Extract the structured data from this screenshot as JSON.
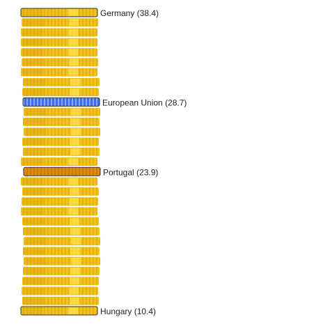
{
  "chart_data": {
    "type": "bar",
    "style": "stacked-coins",
    "coin_count": 31,
    "highlighted": [
      {
        "label": "Germany (38.4)",
        "kind": "outlined",
        "coin_index": 0
      },
      {
        "label": "European Union (28.7)",
        "kind": "blue",
        "coin_index": 9
      },
      {
        "label": "Portugal (23.9)",
        "kind": "orange",
        "coin_index": 16
      },
      {
        "label": "Hungary (10.4)",
        "kind": "outlined",
        "coin_index": 30
      }
    ]
  },
  "colors": {
    "coin_gold": "#F0C21A",
    "coin_gold_dark": "#D9A30E",
    "coin_highlight": "#FFE34D",
    "eu_blue": "#3B6CF0",
    "eu_blue_light": "#8EB0FF",
    "portugal_orange": "#E08A0C",
    "outline": "#333333"
  }
}
